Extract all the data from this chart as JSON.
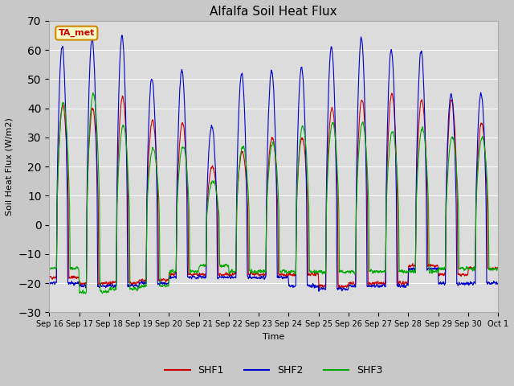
{
  "title": "Alfalfa Soil Heat Flux",
  "ylabel": "Soil Heat Flux (W/m2)",
  "xlabel": "Time",
  "ylim": [
    -30,
    70
  ],
  "fig_bg_color": "#c8c8c8",
  "plot_bg_color": "#dcdcdc",
  "grid_color": "#ffffff",
  "shf1_color": "#cc0000",
  "shf2_color": "#0000cc",
  "shf3_color": "#00aa00",
  "annotation_text": "TA_met",
  "annotation_bg": "#ffffcc",
  "annotation_border": "#cc8800",
  "annotation_text_color": "#cc0000",
  "x_tick_labels": [
    "Sep 16",
    "Sep 17",
    "Sep 18",
    "Sep 19",
    "Sep 20",
    "Sep 21",
    "Sep 22",
    "Sep 23",
    "Sep 24",
    "Sep 25",
    "Sep 26",
    "Sep 27",
    "Sep 28",
    "Sep 29",
    "Sep 30",
    "Oct 1"
  ],
  "n_days": 15,
  "pts_per_day": 144,
  "peaks1": [
    41,
    40,
    44,
    36,
    35,
    20,
    25,
    30,
    30,
    40,
    43,
    45,
    43,
    43,
    35
  ],
  "peaks2": [
    61,
    64,
    65,
    50,
    53,
    34,
    52,
    53,
    54,
    61,
    64,
    60,
    60,
    45,
    45
  ],
  "peaks3": [
    42,
    45,
    34,
    26,
    27,
    15,
    27,
    28,
    34,
    35,
    35,
    32,
    33,
    30,
    30
  ],
  "night_vals1": [
    -18,
    -20,
    -20,
    -19,
    -17,
    -17,
    -17,
    -17,
    -17,
    -21,
    -20,
    -20,
    -14,
    -17,
    -15
  ],
  "night_vals2": [
    -20,
    -21,
    -21,
    -20,
    -18,
    -18,
    -18,
    -18,
    -21,
    -22,
    -21,
    -21,
    -15,
    -20,
    -20
  ],
  "night_vals3": [
    -15,
    -23,
    -22,
    -21,
    -16,
    -14,
    -16,
    -16,
    -16,
    -16,
    -16,
    -16,
    -16,
    -15,
    -15
  ]
}
